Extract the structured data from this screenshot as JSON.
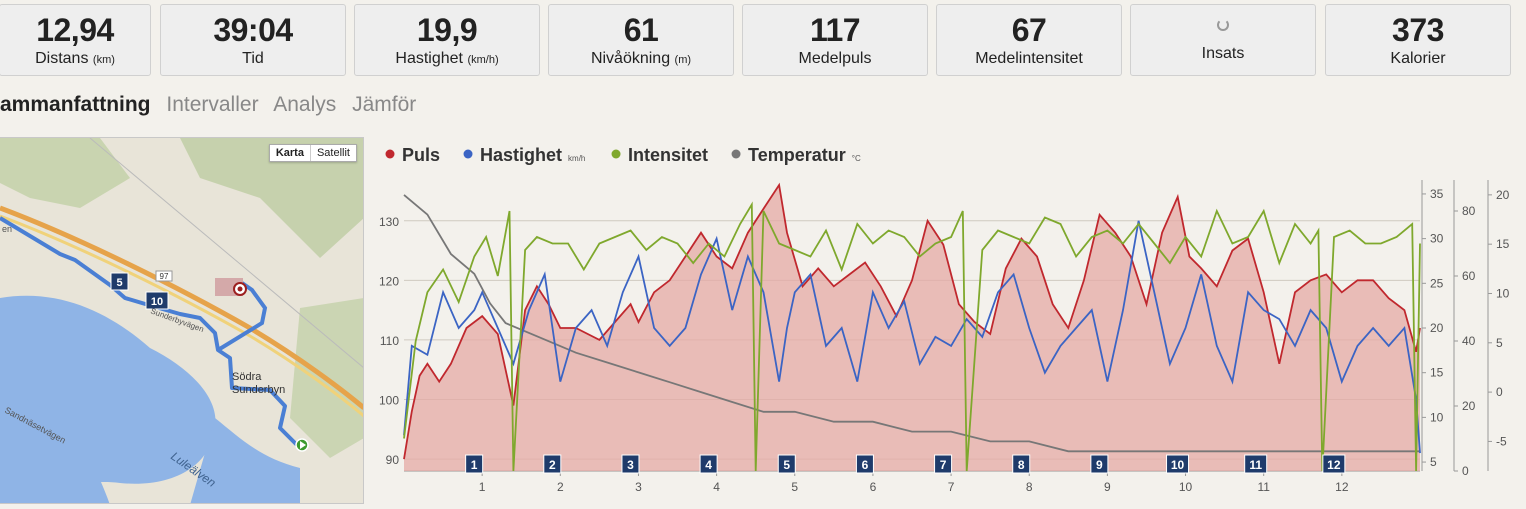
{
  "stats": [
    {
      "value": "12,94",
      "label": "Distans",
      "unit": "(km)"
    },
    {
      "value": "39:04",
      "label": "Tid",
      "unit": ""
    },
    {
      "value": "19,9",
      "label": "Hastighet",
      "unit": "(km/h)"
    },
    {
      "value": "61",
      "label": "Nivåökning",
      "unit": "(m)"
    },
    {
      "value": "117",
      "label": "Medelpuls",
      "unit": ""
    },
    {
      "value": "67",
      "label": "Medelintensitet",
      "unit": ""
    },
    {
      "value": "",
      "label": "Insats",
      "unit": ""
    },
    {
      "value": "373",
      "label": "Kalorier",
      "unit": ""
    }
  ],
  "tabs": [
    {
      "label": "Sammanfattning",
      "active": true
    },
    {
      "label": "Intervaller",
      "active": false
    },
    {
      "label": "Analys",
      "active": false
    },
    {
      "label": "Jämför",
      "active": false
    }
  ],
  "map": {
    "type_buttons": [
      "Karta",
      "Satellit"
    ],
    "labels": {
      "place": "Södra",
      "place2": "Sunderbyn",
      "river": "Luleälven",
      "road1": "Sandnäsetvägen",
      "road_number": "97",
      "street_fragment": "en",
      "street2": "Sunderbyvägen"
    },
    "km_markers": [
      "5",
      "10"
    ]
  },
  "chart_data": {
    "type": "line",
    "legend": [
      {
        "name": "Puls",
        "unit": "",
        "color": "#c0282e"
      },
      {
        "name": "Hastighet",
        "unit": "km/h",
        "color": "#3b64c4"
      },
      {
        "name": "Intensitet",
        "unit": "",
        "color": "#7fa82d"
      },
      {
        "name": "Temperatur",
        "unit": "°C",
        "color": "#777777"
      }
    ],
    "x_range": [
      0,
      13
    ],
    "x_ticks": [
      "1",
      "2",
      "3",
      "4",
      "5",
      "6",
      "7",
      "8",
      "9",
      "10",
      "11",
      "12"
    ],
    "lap_markers": [
      "1",
      "2",
      "3",
      "4",
      "5",
      "6",
      "7",
      "8",
      "9",
      "10",
      "11",
      "12"
    ],
    "axes": {
      "puls": {
        "range": [
          88,
          136
        ],
        "ticks": [
          "90",
          "100",
          "110",
          "120",
          "130"
        ]
      },
      "hastighet": {
        "range": [
          4,
          36
        ],
        "ticks": [
          "5",
          "10",
          "15",
          "20",
          "25",
          "30",
          "35"
        ]
      },
      "intensitet": {
        "range": [
          0,
          88
        ],
        "ticks": [
          "0",
          "20",
          "40",
          "60",
          "80"
        ]
      },
      "temperatur": {
        "range": [
          -8,
          21
        ],
        "ticks": [
          "-5",
          "0",
          "5",
          "10",
          "15",
          "20"
        ]
      }
    },
    "series": [
      {
        "name": "Puls",
        "x": [
          0,
          0.1,
          0.2,
          0.3,
          0.45,
          0.6,
          0.8,
          1.0,
          1.2,
          1.4,
          1.55,
          1.7,
          1.85,
          2.0,
          2.2,
          2.5,
          2.7,
          2.9,
          3.0,
          3.2,
          3.4,
          3.6,
          3.8,
          4.0,
          4.2,
          4.4,
          4.6,
          4.8,
          4.9,
          5.1,
          5.3,
          5.5,
          5.7,
          5.9,
          6.1,
          6.3,
          6.5,
          6.7,
          6.9,
          7.1,
          7.3,
          7.5,
          7.7,
          7.9,
          8.1,
          8.3,
          8.5,
          8.7,
          8.9,
          9.1,
          9.3,
          9.5,
          9.7,
          9.9,
          10.05,
          10.2,
          10.4,
          10.6,
          10.8,
          11.0,
          11.2,
          11.4,
          11.6,
          11.8,
          12.0,
          12.2,
          12.4,
          12.6,
          12.8,
          12.95,
          13.0
        ],
        "values": [
          90,
          98,
          104,
          106,
          103,
          106,
          112,
          114,
          111,
          99,
          115,
          119,
          116,
          112,
          112,
          110,
          113,
          116,
          113,
          118,
          120,
          124,
          128,
          124,
          122,
          128,
          132,
          136,
          128,
          119,
          122,
          119,
          121,
          123,
          119,
          114,
          120,
          130,
          126,
          116,
          113,
          111,
          122,
          127,
          124,
          116,
          112,
          120,
          131,
          128,
          124,
          116,
          128,
          134,
          124,
          122,
          119,
          125,
          127,
          118,
          106,
          118,
          120,
          121,
          118,
          120,
          120,
          117,
          115,
          108,
          112
        ]
      },
      {
        "name": "Hastighet",
        "x": [
          0,
          0.1,
          0.3,
          0.5,
          0.7,
          0.9,
          1.0,
          1.2,
          1.4,
          1.6,
          1.8,
          2.0,
          2.2,
          2.4,
          2.6,
          2.8,
          3.0,
          3.2,
          3.4,
          3.6,
          3.8,
          4.0,
          4.2,
          4.4,
          4.6,
          4.8,
          4.9,
          5.0,
          5.2,
          5.4,
          5.6,
          5.8,
          6.0,
          6.2,
          6.4,
          6.6,
          6.8,
          7.0,
          7.2,
          7.4,
          7.6,
          7.8,
          8.0,
          8.2,
          8.4,
          8.6,
          8.8,
          9.0,
          9.2,
          9.4,
          9.6,
          9.8,
          10.0,
          10.2,
          10.4,
          10.6,
          10.8,
          11.0,
          11.2,
          11.4,
          11.6,
          11.8,
          12.0,
          12.2,
          12.4,
          12.6,
          12.8,
          12.95,
          13.0
        ],
        "values": [
          8,
          18,
          17,
          24,
          20,
          22,
          24,
          20,
          16,
          22,
          26,
          14,
          20,
          22,
          18,
          24,
          28,
          20,
          18,
          20,
          26,
          30,
          22,
          28,
          24,
          14,
          20,
          24,
          26,
          18,
          20,
          14,
          24,
          20,
          23,
          16,
          19,
          18,
          21,
          19,
          24,
          26,
          20,
          15,
          18,
          20,
          22,
          14,
          22,
          32,
          24,
          16,
          20,
          26,
          18,
          14,
          24,
          22,
          21,
          18,
          22,
          20,
          14,
          18,
          20,
          18,
          20,
          12,
          6
        ]
      },
      {
        "name": "Intensitet",
        "x": [
          0,
          0.15,
          0.3,
          0.5,
          0.7,
          0.9,
          1.05,
          1.2,
          1.35,
          1.4,
          1.55,
          1.7,
          1.9,
          2.1,
          2.3,
          2.5,
          2.7,
          2.9,
          3.1,
          3.3,
          3.5,
          3.7,
          3.9,
          4.1,
          4.3,
          4.45,
          4.5,
          4.6,
          4.8,
          5.0,
          5.2,
          5.4,
          5.6,
          5.8,
          6.0,
          6.2,
          6.4,
          6.6,
          6.8,
          7.0,
          7.15,
          7.2,
          7.4,
          7.6,
          7.8,
          8.0,
          8.2,
          8.4,
          8.6,
          8.8,
          9.0,
          9.2,
          9.4,
          9.6,
          9.8,
          10.0,
          10.2,
          10.4,
          10.6,
          10.8,
          11.0,
          11.2,
          11.4,
          11.6,
          11.7,
          11.75,
          11.9,
          12.1,
          12.3,
          12.5,
          12.7,
          12.9,
          12.95,
          13.0
        ],
        "values": [
          10,
          40,
          55,
          62,
          52,
          66,
          72,
          60,
          80,
          0,
          68,
          72,
          70,
          70,
          62,
          70,
          72,
          74,
          68,
          72,
          70,
          64,
          70,
          66,
          76,
          82,
          0,
          80,
          70,
          68,
          66,
          74,
          62,
          76,
          70,
          74,
          72,
          66,
          70,
          72,
          80,
          0,
          68,
          74,
          72,
          70,
          78,
          76,
          66,
          72,
          74,
          70,
          76,
          70,
          64,
          72,
          66,
          80,
          70,
          72,
          80,
          64,
          76,
          70,
          74,
          0,
          72,
          74,
          70,
          70,
          72,
          76,
          0,
          70
        ]
      },
      {
        "name": "Temperatur",
        "x": [
          0,
          0.3,
          0.6,
          0.9,
          1.1,
          1.3,
          1.6,
          1.9,
          2.2,
          2.6,
          3.0,
          3.4,
          3.8,
          4.2,
          4.6,
          5.0,
          5.5,
          6.0,
          6.5,
          7.0,
          7.5,
          8.0,
          8.5,
          9.0,
          10.0,
          11.0,
          12.0,
          13.0
        ],
        "values": [
          20,
          18,
          14,
          12,
          9,
          7,
          6,
          5,
          4,
          3,
          2,
          1,
          0,
          -1,
          -2,
          -2,
          -3,
          -3,
          -4,
          -4,
          -5,
          -5,
          -6,
          -6,
          -6,
          -6,
          -6,
          -6
        ]
      }
    ]
  }
}
